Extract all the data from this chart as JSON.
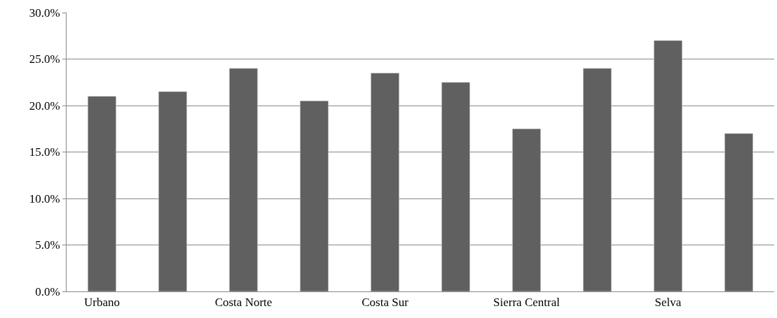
{
  "chart_data": {
    "type": "bar",
    "categories": [
      "Urbano",
      null,
      "Costa Norte",
      null,
      "Costa Sur",
      null,
      "Sierra Central",
      null,
      "Selva",
      null
    ],
    "values": [
      21.0,
      21.5,
      24.0,
      20.5,
      23.5,
      22.5,
      17.5,
      24.0,
      27.0,
      17.0
    ],
    "color": "#606060",
    "ylim": [
      0,
      30
    ],
    "yticks": [
      {
        "value": 0,
        "label": "0.0%"
      },
      {
        "value": 5,
        "label": "5.0%"
      },
      {
        "value": 10,
        "label": "10.0%"
      },
      {
        "value": 15,
        "label": "15.0%"
      },
      {
        "value": 20,
        "label": "20.0%"
      },
      {
        "value": 25,
        "label": "25.0%"
      },
      {
        "value": 30,
        "label": "30.0%"
      }
    ],
    "grid": "y"
  }
}
